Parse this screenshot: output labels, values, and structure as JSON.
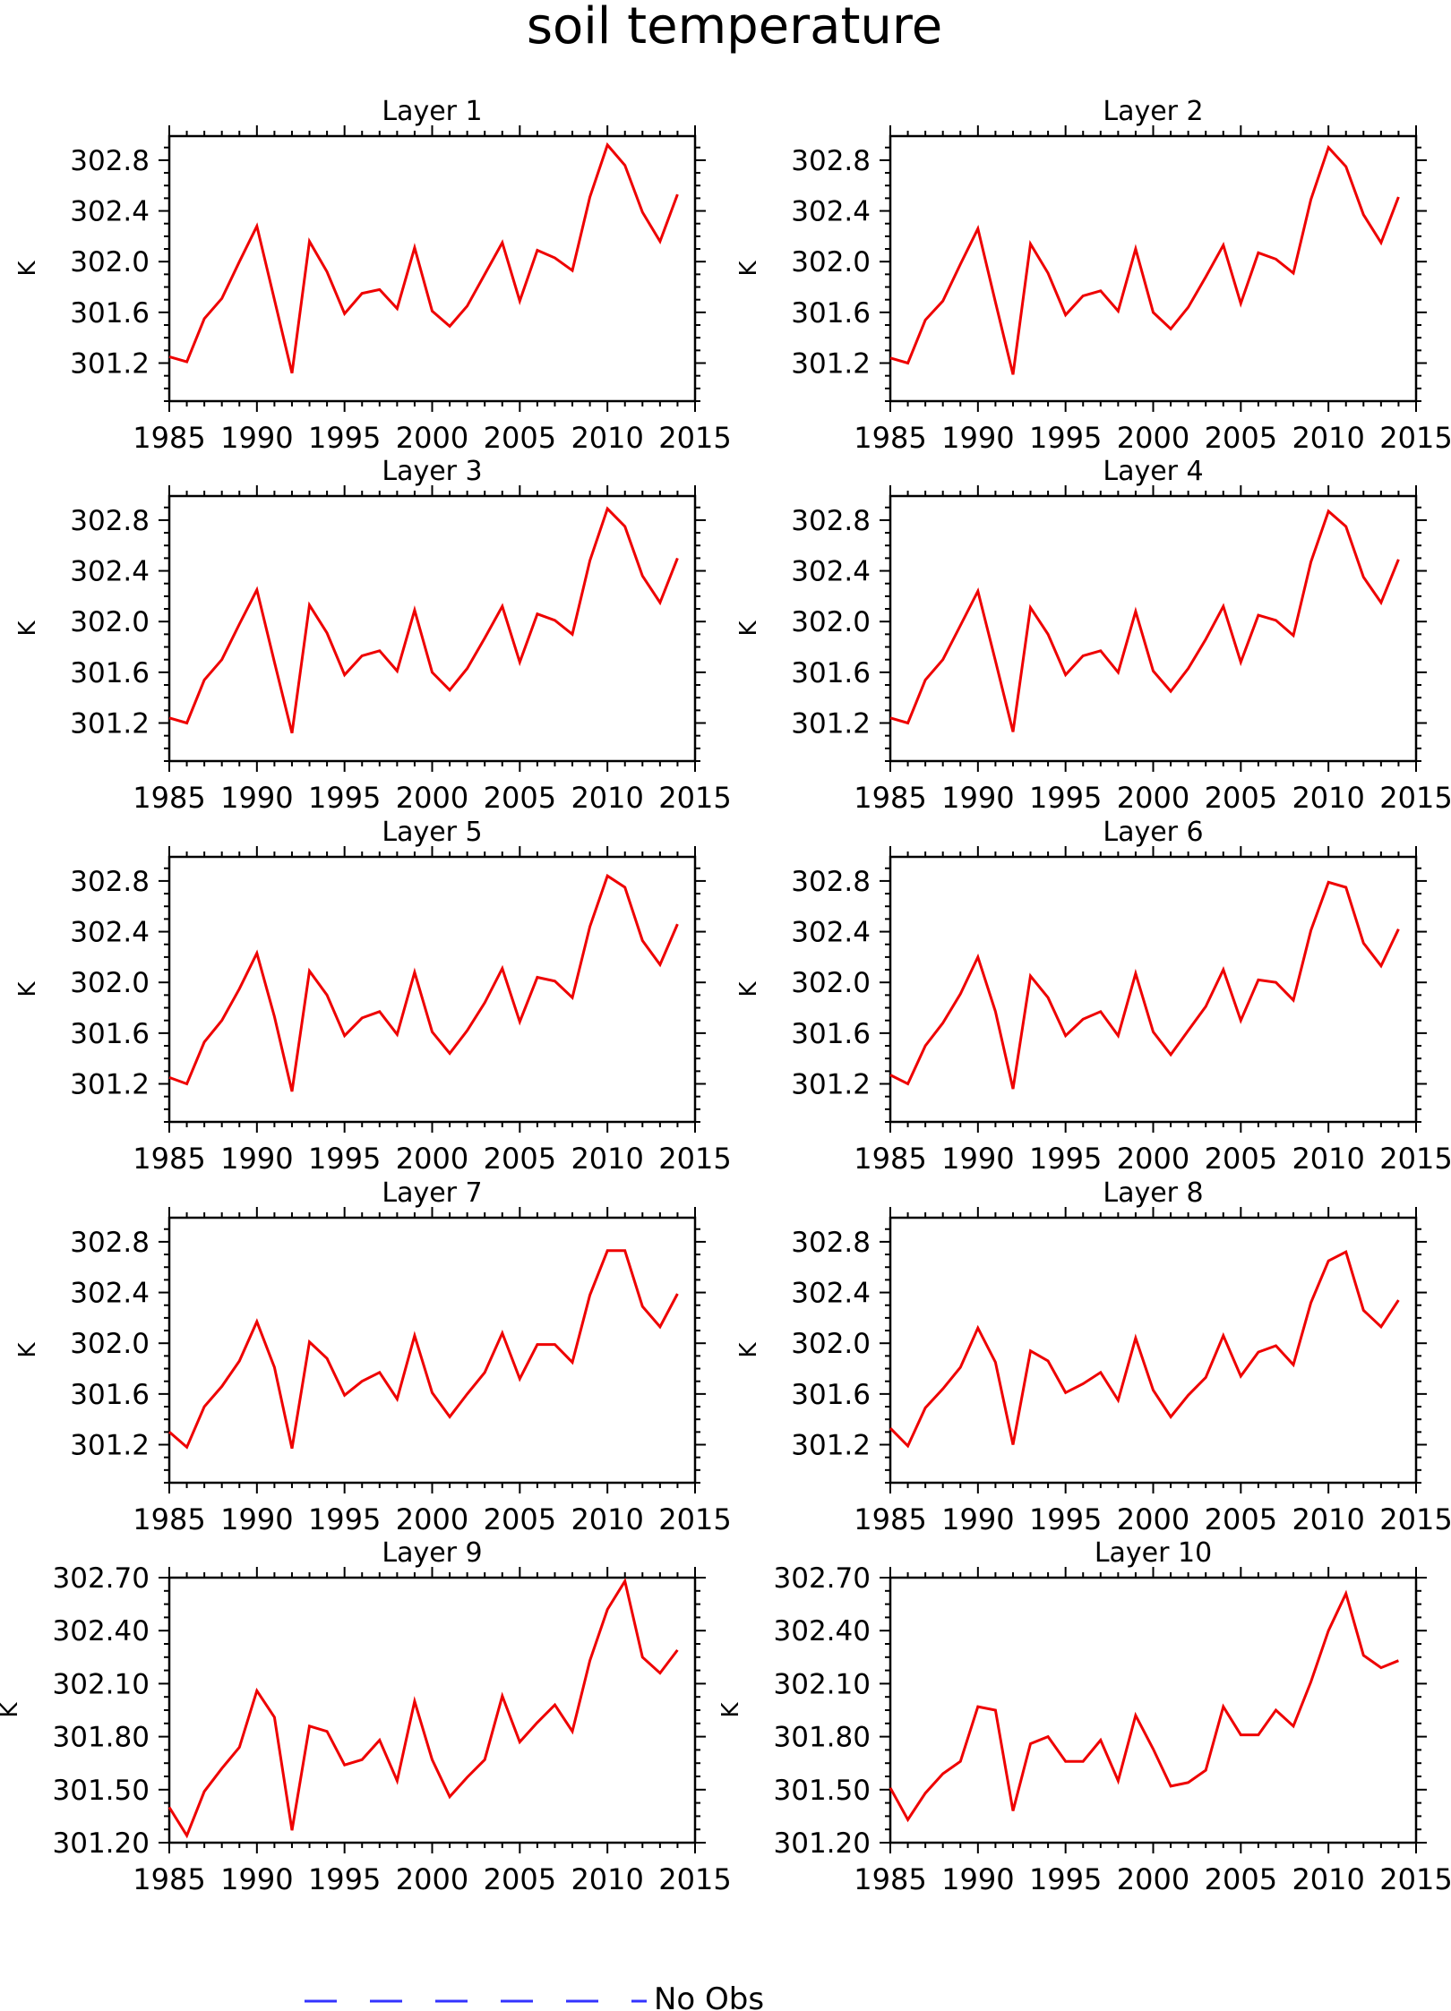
{
  "figure": {
    "title": "soil temperature",
    "legend": {
      "label": "No Obs",
      "line_color": "#3333ff",
      "placement": "bottom-left"
    }
  },
  "colors": {
    "series": "#ee0000",
    "axes": "#000000"
  },
  "chart_data": [
    {
      "type": "line",
      "title": "Layer 1",
      "ylabel": "K",
      "xlim": [
        1985,
        2015
      ],
      "ylim": [
        300.9,
        302.99
      ],
      "xticks": [
        "1985",
        "1990",
        "1995",
        "2000",
        "2005",
        "2010",
        "2015"
      ],
      "yticks": [
        "301.2",
        "301.6",
        "302.0",
        "302.4",
        "302.8"
      ],
      "x": [
        1985,
        1986,
        1987,
        1988,
        1989,
        1990,
        1991,
        1992,
        1993,
        1994,
        1995,
        1996,
        1997,
        1998,
        1999,
        2000,
        2001,
        2002,
        2003,
        2004,
        2005,
        2006,
        2007,
        2008,
        2009,
        2010,
        2011,
        2012,
        2013,
        2014
      ],
      "series": [
        {
          "values": [
            301.25,
            301.21,
            301.55,
            301.71,
            302.0,
            302.28,
            301.7,
            301.12,
            302.16,
            301.92,
            301.59,
            301.75,
            301.78,
            301.63,
            302.11,
            301.61,
            301.49,
            301.65,
            301.9,
            302.15,
            301.69,
            302.09,
            302.03,
            301.93,
            302.51,
            302.92,
            302.76,
            302.39,
            302.16,
            302.53
          ]
        }
      ]
    },
    {
      "type": "line",
      "title": "Layer 2",
      "ylabel": "K",
      "xlim": [
        1985,
        2015
      ],
      "ylim": [
        300.9,
        302.99
      ],
      "xticks": [
        "1985",
        "1990",
        "1995",
        "2000",
        "2005",
        "2010",
        "2015"
      ],
      "yticks": [
        "301.2",
        "301.6",
        "302.0",
        "302.4",
        "302.8"
      ],
      "x": [
        1985,
        1986,
        1987,
        1988,
        1989,
        1990,
        1991,
        1992,
        1993,
        1994,
        1995,
        1996,
        1997,
        1998,
        1999,
        2000,
        2001,
        2002,
        2003,
        2004,
        2005,
        2006,
        2007,
        2008,
        2009,
        2010,
        2011,
        2012,
        2013,
        2014
      ],
      "series": [
        {
          "values": [
            301.24,
            301.2,
            301.54,
            301.69,
            301.98,
            302.26,
            301.68,
            301.11,
            302.14,
            301.91,
            301.58,
            301.73,
            301.77,
            301.61,
            302.1,
            301.6,
            301.47,
            301.64,
            301.88,
            302.13,
            301.67,
            302.07,
            302.02,
            301.91,
            302.49,
            302.9,
            302.75,
            302.37,
            302.15,
            302.51
          ]
        }
      ]
    },
    {
      "type": "line",
      "title": "Layer 3",
      "ylabel": "K",
      "xlim": [
        1985,
        2015
      ],
      "ylim": [
        300.9,
        302.99
      ],
      "xticks": [
        "1985",
        "1990",
        "1995",
        "2000",
        "2005",
        "2010",
        "2015"
      ],
      "yticks": [
        "301.2",
        "301.6",
        "302.0",
        "302.4",
        "302.8"
      ],
      "x": [
        1985,
        1986,
        1987,
        1988,
        1989,
        1990,
        1991,
        1992,
        1993,
        1994,
        1995,
        1996,
        1997,
        1998,
        1999,
        2000,
        2001,
        2002,
        2003,
        2004,
        2005,
        2006,
        2007,
        2008,
        2009,
        2010,
        2011,
        2012,
        2013,
        2014
      ],
      "series": [
        {
          "values": [
            301.24,
            301.2,
            301.54,
            301.7,
            301.98,
            302.25,
            301.68,
            301.12,
            302.13,
            301.91,
            301.58,
            301.73,
            301.77,
            301.61,
            302.09,
            301.6,
            301.46,
            301.63,
            301.87,
            302.12,
            301.68,
            302.06,
            302.01,
            301.9,
            302.48,
            302.89,
            302.75,
            302.36,
            302.15,
            302.5
          ]
        }
      ]
    },
    {
      "type": "line",
      "title": "Layer 4",
      "ylabel": "K",
      "xlim": [
        1985,
        2015
      ],
      "ylim": [
        300.9,
        302.99
      ],
      "xticks": [
        "1985",
        "1990",
        "1995",
        "2000",
        "2005",
        "2010",
        "2015"
      ],
      "yticks": [
        "301.2",
        "301.6",
        "302.0",
        "302.4",
        "302.8"
      ],
      "x": [
        1985,
        1986,
        1987,
        1988,
        1989,
        1990,
        1991,
        1992,
        1993,
        1994,
        1995,
        1996,
        1997,
        1998,
        1999,
        2000,
        2001,
        2002,
        2003,
        2004,
        2005,
        2006,
        2007,
        2008,
        2009,
        2010,
        2011,
        2012,
        2013,
        2014
      ],
      "series": [
        {
          "values": [
            301.24,
            301.2,
            301.54,
            301.7,
            301.97,
            302.24,
            301.69,
            301.13,
            302.11,
            301.9,
            301.58,
            301.73,
            301.77,
            301.6,
            302.08,
            301.61,
            301.45,
            301.63,
            301.86,
            302.12,
            301.68,
            302.05,
            302.01,
            301.89,
            302.47,
            302.87,
            302.75,
            302.35,
            302.15,
            302.49
          ]
        }
      ]
    },
    {
      "type": "line",
      "title": "Layer 5",
      "ylabel": "K",
      "xlim": [
        1985,
        2015
      ],
      "ylim": [
        300.9,
        302.99
      ],
      "xticks": [
        "1985",
        "1990",
        "1995",
        "2000",
        "2005",
        "2010",
        "2015"
      ],
      "yticks": [
        "301.2",
        "301.6",
        "302.0",
        "302.4",
        "302.8"
      ],
      "x": [
        1985,
        1986,
        1987,
        1988,
        1989,
        1990,
        1991,
        1992,
        1993,
        1994,
        1995,
        1996,
        1997,
        1998,
        1999,
        2000,
        2001,
        2002,
        2003,
        2004,
        2005,
        2006,
        2007,
        2008,
        2009,
        2010,
        2011,
        2012,
        2013,
        2014
      ],
      "series": [
        {
          "values": [
            301.25,
            301.2,
            301.53,
            301.7,
            301.95,
            302.23,
            301.73,
            301.14,
            302.09,
            301.9,
            301.58,
            301.72,
            301.77,
            301.59,
            302.08,
            301.61,
            301.44,
            301.62,
            301.84,
            302.11,
            301.69,
            302.04,
            302.01,
            301.88,
            302.44,
            302.84,
            302.75,
            302.33,
            302.14,
            302.46
          ]
        }
      ]
    },
    {
      "type": "line",
      "title": "Layer 6",
      "ylabel": "K",
      "xlim": [
        1985,
        2015
      ],
      "ylim": [
        300.9,
        302.99
      ],
      "xticks": [
        "1985",
        "1990",
        "1995",
        "2000",
        "2005",
        "2010",
        "2015"
      ],
      "yticks": [
        "301.2",
        "301.6",
        "302.0",
        "302.4",
        "302.8"
      ],
      "x": [
        1985,
        1986,
        1987,
        1988,
        1989,
        1990,
        1991,
        1992,
        1993,
        1994,
        1995,
        1996,
        1997,
        1998,
        1999,
        2000,
        2001,
        2002,
        2003,
        2004,
        2005,
        2006,
        2007,
        2008,
        2009,
        2010,
        2011,
        2012,
        2013,
        2014
      ],
      "series": [
        {
          "values": [
            301.27,
            301.2,
            301.5,
            301.68,
            301.91,
            302.2,
            301.77,
            301.16,
            302.05,
            301.88,
            301.58,
            301.71,
            301.77,
            301.58,
            302.07,
            301.61,
            301.43,
            301.62,
            301.81,
            302.1,
            301.7,
            302.02,
            302.0,
            301.86,
            302.41,
            302.79,
            302.75,
            302.31,
            302.13,
            302.42
          ]
        }
      ]
    },
    {
      "type": "line",
      "title": "Layer 7",
      "ylabel": "K",
      "xlim": [
        1985,
        2015
      ],
      "ylim": [
        300.9,
        302.99
      ],
      "xticks": [
        "1985",
        "1990",
        "1995",
        "2000",
        "2005",
        "2010",
        "2015"
      ],
      "yticks": [
        "301.2",
        "301.6",
        "302.0",
        "302.4",
        "302.8"
      ],
      "x": [
        1985,
        1986,
        1987,
        1988,
        1989,
        1990,
        1991,
        1992,
        1993,
        1994,
        1995,
        1996,
        1997,
        1998,
        1999,
        2000,
        2001,
        2002,
        2003,
        2004,
        2005,
        2006,
        2007,
        2008,
        2009,
        2010,
        2011,
        2012,
        2013,
        2014
      ],
      "series": [
        {
          "values": [
            301.3,
            301.18,
            301.5,
            301.66,
            301.86,
            302.17,
            301.81,
            301.17,
            302.01,
            301.88,
            301.59,
            301.7,
            301.77,
            301.56,
            302.06,
            301.61,
            301.42,
            301.6,
            301.77,
            302.08,
            301.72,
            301.99,
            301.99,
            301.85,
            302.38,
            302.73,
            302.73,
            302.29,
            302.13,
            302.39
          ]
        }
      ]
    },
    {
      "type": "line",
      "title": "Layer 8",
      "ylabel": "K",
      "xlim": [
        1985,
        2015
      ],
      "ylim": [
        300.9,
        302.99
      ],
      "xticks": [
        "1985",
        "1990",
        "1995",
        "2000",
        "2005",
        "2010",
        "2015"
      ],
      "yticks": [
        "301.2",
        "301.6",
        "302.0",
        "302.4",
        "302.8"
      ],
      "x": [
        1985,
        1986,
        1987,
        1988,
        1989,
        1990,
        1991,
        1992,
        1993,
        1994,
        1995,
        1996,
        1997,
        1998,
        1999,
        2000,
        2001,
        2002,
        2003,
        2004,
        2005,
        2006,
        2007,
        2008,
        2009,
        2010,
        2011,
        2012,
        2013,
        2014
      ],
      "series": [
        {
          "values": [
            301.33,
            301.19,
            301.49,
            301.64,
            301.81,
            302.12,
            301.85,
            301.2,
            301.94,
            301.86,
            301.61,
            301.68,
            301.77,
            301.55,
            302.04,
            301.63,
            301.42,
            301.59,
            301.73,
            302.06,
            301.74,
            301.93,
            301.98,
            301.83,
            302.32,
            302.65,
            302.72,
            302.26,
            302.13,
            302.34
          ]
        }
      ]
    },
    {
      "type": "line",
      "title": "Layer 9",
      "ylabel": "K",
      "xlim": [
        1985,
        2015
      ],
      "ylim": [
        301.2,
        302.7
      ],
      "xticks": [
        "1985",
        "1990",
        "1995",
        "2000",
        "2005",
        "2010",
        "2015"
      ],
      "yticks": [
        "301.20",
        "301.50",
        "301.80",
        "302.10",
        "302.40",
        "302.70"
      ],
      "x": [
        1985,
        1986,
        1987,
        1988,
        1989,
        1990,
        1991,
        1992,
        1993,
        1994,
        1995,
        1996,
        1997,
        1998,
        1999,
        2000,
        2001,
        2002,
        2003,
        2004,
        2005,
        2006,
        2007,
        2008,
        2009,
        2010,
        2011,
        2012,
        2013,
        2014
      ],
      "series": [
        {
          "values": [
            301.4,
            301.24,
            301.49,
            301.62,
            301.74,
            302.06,
            301.91,
            301.27,
            301.86,
            301.83,
            301.64,
            301.67,
            301.78,
            301.55,
            302.0,
            301.67,
            301.46,
            301.57,
            301.67,
            302.03,
            301.77,
            301.88,
            301.98,
            301.83,
            302.23,
            302.52,
            302.68,
            302.25,
            302.16,
            302.29
          ]
        }
      ]
    },
    {
      "type": "line",
      "title": "Layer 10",
      "ylabel": "K",
      "xlim": [
        1985,
        2015
      ],
      "ylim": [
        301.2,
        302.7
      ],
      "xticks": [
        "1985",
        "1990",
        "1995",
        "2000",
        "2005",
        "2010",
        "2015"
      ],
      "yticks": [
        "301.20",
        "301.50",
        "301.80",
        "302.10",
        "302.40",
        "302.70"
      ],
      "x": [
        1985,
        1986,
        1987,
        1988,
        1989,
        1990,
        1991,
        1992,
        1993,
        1994,
        1995,
        1996,
        1997,
        1998,
        1999,
        2000,
        2001,
        2002,
        2003,
        2004,
        2005,
        2006,
        2007,
        2008,
        2009,
        2010,
        2011,
        2012,
        2013,
        2014
      ],
      "series": [
        {
          "values": [
            301.51,
            301.33,
            301.48,
            301.59,
            301.66,
            301.97,
            301.95,
            301.38,
            301.76,
            301.8,
            301.66,
            301.66,
            301.78,
            301.55,
            301.92,
            301.73,
            301.52,
            301.54,
            301.61,
            301.97,
            301.81,
            301.81,
            301.95,
            301.86,
            302.11,
            302.4,
            302.61,
            302.26,
            302.19,
            302.23
          ]
        }
      ]
    }
  ]
}
